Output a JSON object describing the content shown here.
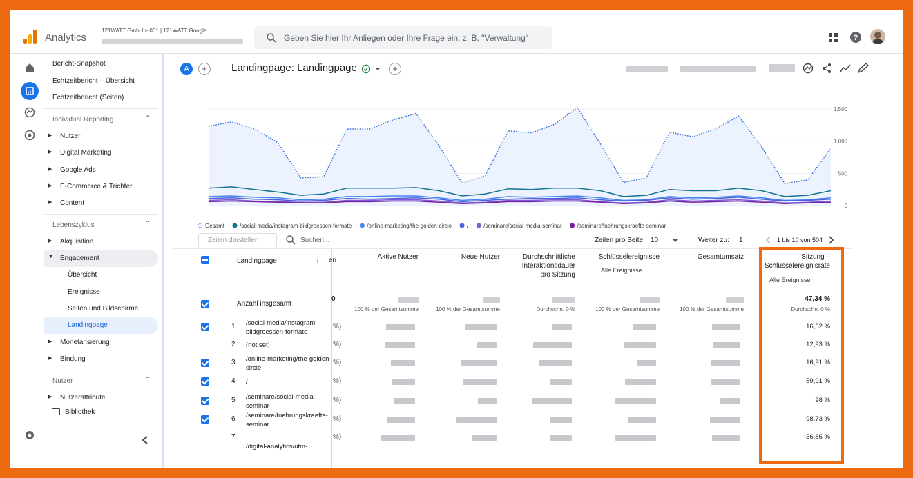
{
  "topbar": {
    "product": "Analytics",
    "account": "121WATT GmbH > 001 | 121WATT Google ...",
    "search": "Geben Sie hier Ihr Anliegen oder Ihre Frage ein, z. B. \"Verwaltung\""
  },
  "sidebar": {
    "top": [
      "Bericht-Snapshot",
      "Echtzeitbericht – Übersicht",
      "Echtzeitbericht (Seiten)"
    ],
    "sections": [
      {
        "title": "Individual Reporting",
        "items": [
          "Nutzer",
          "Digital Marketing",
          "Google Ads",
          "E-Commerce & Trichter",
          "Content"
        ]
      },
      {
        "title": "Lebenszyklus",
        "items": [
          "Akquisition",
          "Engagement",
          "Monetarisierung",
          "Bindung"
        ],
        "engagement_items": [
          "Übersicht",
          "Ereignisse",
          "Seiten und Bildschirme",
          "Landingpage"
        ]
      },
      {
        "title": "Nutzer",
        "items": [
          "Nutzerattribute"
        ]
      }
    ],
    "library": "Bibliothek"
  },
  "report": {
    "badge": "A",
    "title": "Landingpage: Landingpage"
  },
  "chart_data": {
    "type": "line",
    "categories": [
      null,
      null,
      null,
      null,
      null,
      null,
      null,
      null,
      null,
      null,
      null,
      null,
      null,
      null,
      null,
      null,
      null,
      null,
      null,
      null,
      null,
      null,
      null,
      null,
      null,
      null,
      null,
      null
    ],
    "ylim": [
      0,
      1600
    ],
    "yticks": [
      0,
      500,
      {
        "value": 1000,
        "label": "1.000"
      },
      {
        "value": 1500,
        "label": "1.500"
      }
    ],
    "series": [
      {
        "name": "Gesamt",
        "color": "#3a6fd8",
        "values": [
          1230,
          1300,
          1190,
          980,
          430,
          450,
          1190,
          1190,
          1330,
          1430,
          930,
          350,
          460,
          1160,
          1130,
          1260,
          1520,
          960,
          360,
          430,
          1140,
          1070,
          1190,
          1390,
          910,
          340,
          400,
          890
        ]
      },
      {
        "name": "/social-media/instagram-bildgroessen-formate",
        "color": "#12758f",
        "values": [
          270,
          290,
          250,
          210,
          160,
          180,
          270,
          270,
          270,
          280,
          230,
          150,
          180,
          260,
          250,
          270,
          270,
          230,
          140,
          160,
          250,
          230,
          230,
          270,
          230,
          140,
          160,
          230
        ]
      },
      {
        "name": "/online-marketing/the-golden-circle",
        "color": "#4285f4",
        "values": [
          140,
          150,
          130,
          120,
          90,
          100,
          140,
          140,
          150,
          150,
          120,
          80,
          100,
          140,
          130,
          140,
          150,
          120,
          80,
          90,
          140,
          120,
          130,
          150,
          120,
          80,
          90,
          120
        ]
      },
      {
        "name": "/",
        "color": "#5061d8",
        "values": [
          110,
          120,
          100,
          90,
          70,
          80,
          110,
          100,
          110,
          120,
          100,
          60,
          80,
          100,
          110,
          110,
          120,
          90,
          70,
          80,
          120,
          100,
          110,
          130,
          100,
          70,
          80,
          100
        ]
      },
      {
        "name": "/seminare/social-media-seminar",
        "color": "#7b5cd6",
        "values": [
          80,
          90,
          70,
          60,
          50,
          50,
          80,
          80,
          90,
          90,
          70,
          40,
          50,
          80,
          80,
          90,
          90,
          60,
          40,
          50,
          90,
          70,
          80,
          90,
          70,
          40,
          50,
          70
        ]
      },
      {
        "name": "/seminare/fuehrungskraefte-seminar",
        "color": "#7b1fa2",
        "values": [
          60,
          70,
          60,
          50,
          40,
          40,
          60,
          60,
          70,
          70,
          50,
          30,
          40,
          60,
          60,
          70,
          70,
          50,
          30,
          40,
          70,
          50,
          60,
          70,
          50,
          30,
          40,
          50
        ]
      }
    ]
  },
  "toolbar": {
    "rows_button": "Zeilen darstellen",
    "search": "Suchen...",
    "per_page_label": "Zeilen pro Seite:",
    "per_page": "10",
    "goto_label": "Weiter zu:",
    "goto": "1",
    "range": "1 bis 10 von 504"
  },
  "table": {
    "header": {
      "landingpage": "Landingpage",
      "cut": "en",
      "columns": [
        "Aktive Nutzer",
        "Neue Nutzer",
        "Durchschnittliche Interaktionsdauer pro Sitzung",
        "Schlüsselereignisse",
        "Gesamtumsatz",
        "Sitzung – Schlüsselereignisrate"
      ],
      "filter": "Alle Ereignisse"
    },
    "totals": {
      "label": "Anzahl insgesamt",
      "cut": "0",
      "sub": [
        "100 % der Gesamtsumme",
        "100 % der Gesamtsumme",
        "Durchschn. 0 %",
        "100 % der Gesamtsumme",
        "100 % der Gesamtsumme",
        "Durchschn. 0 %"
      ],
      "rate": "47,34 %"
    },
    "rows": [
      {
        "n": "1",
        "page": "/social-media/instagram-bildgroessen-formate",
        "cut": "%)",
        "rate": "16,62 %"
      },
      {
        "n": "2",
        "page": "(not set)",
        "cut": "%)",
        "rate": "12,93 %"
      },
      {
        "n": "3",
        "page": "/online-marketing/the-golden-circle",
        "cut": "%)",
        "rate": "16,91 %"
      },
      {
        "n": "4",
        "page": "/",
        "cut": "%)",
        "rate": "59,91 %"
      },
      {
        "n": "5",
        "page": "/seminare/social-media-seminar",
        "cut": "%)",
        "rate": "98 %"
      },
      {
        "n": "6",
        "page": "/seminare/fuehrungskraefte-seminar",
        "cut": "%)",
        "rate": "98,73 %"
      },
      {
        "n": "7",
        "cut": "%)",
        "rate": "36,85 %"
      },
      {
        "page": "/digital-analytics/utm-"
      }
    ]
  }
}
